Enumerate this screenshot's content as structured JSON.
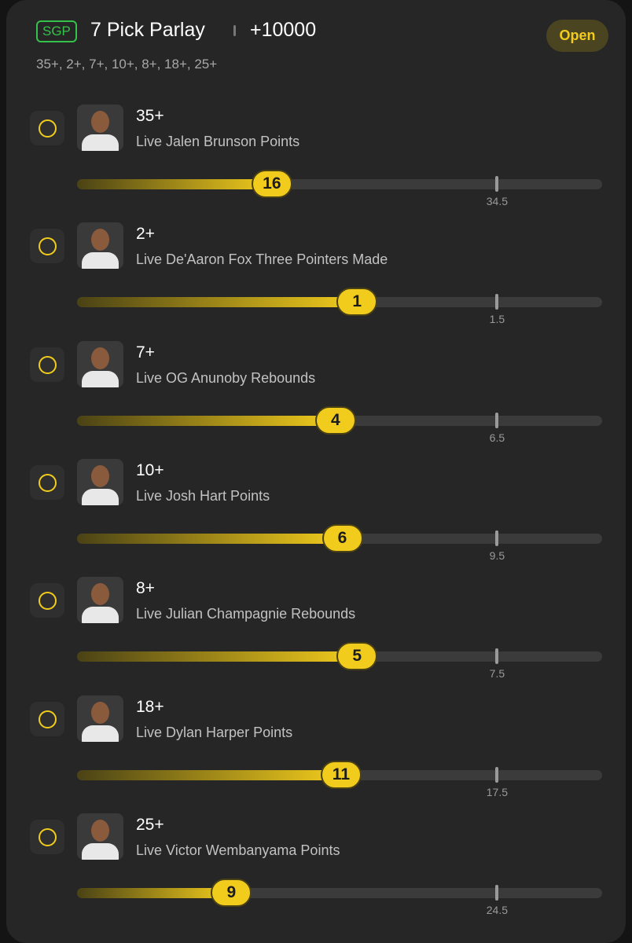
{
  "header": {
    "badge": "SGP",
    "title": "7 Pick Parlay",
    "odds": "+10000",
    "button": "Open",
    "subtitle": "35+, 2+, 7+, 10+, 8+, 18+, 25+"
  },
  "legs": [
    {
      "threshold": "35+",
      "label": "Live Jalen Brunson Points",
      "current": 16,
      "line": 34.5
    },
    {
      "threshold": "2+",
      "label": "Live De'Aaron Fox Three Pointers Made",
      "current": 1,
      "line": 1.5
    },
    {
      "threshold": "7+",
      "label": "Live OG Anunoby Rebounds",
      "current": 4,
      "line": 6.5
    },
    {
      "threshold": "10+",
      "label": "Live Josh Hart Points",
      "current": 6,
      "line": 9.5
    },
    {
      "threshold": "8+",
      "label": "Live Julian Champagnie Rebounds",
      "current": 5,
      "line": 7.5
    },
    {
      "threshold": "18+",
      "label": "Live Dylan Harper Points",
      "current": 11,
      "line": 17.5
    },
    {
      "threshold": "25+",
      "label": "Live Victor Wembanyama Points",
      "current": 9,
      "line": 24.5
    }
  ]
}
